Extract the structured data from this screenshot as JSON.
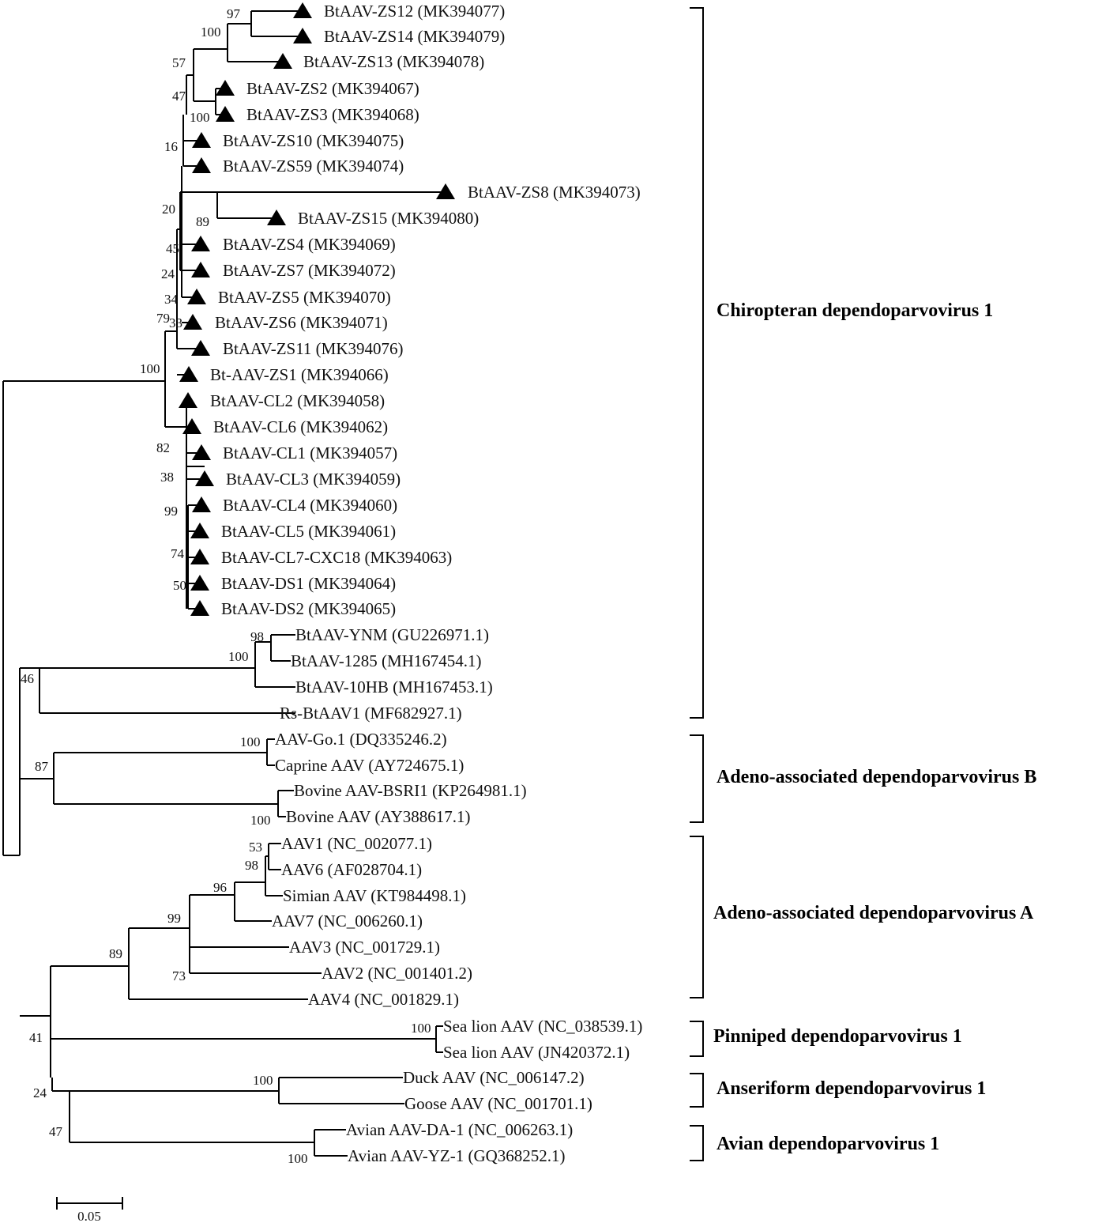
{
  "leaves": [
    {
      "label": "BtAAV-ZS12 (MK394077)",
      "marked": true
    },
    {
      "label": "BtAAV-ZS14 (MK394079)",
      "marked": true
    },
    {
      "label": "BtAAV-ZS13 (MK394078)",
      "marked": true
    },
    {
      "label": "BtAAV-ZS2 (MK394067)",
      "marked": true
    },
    {
      "label": "BtAAV-ZS3 (MK394068)",
      "marked": true
    },
    {
      "label": "BtAAV-ZS10 (MK394075)",
      "marked": true
    },
    {
      "label": "BtAAV-ZS59 (MK394074)",
      "marked": true
    },
    {
      "label": "BtAAV-ZS8 (MK394073)",
      "marked": true
    },
    {
      "label": "BtAAV-ZS15 (MK394080)",
      "marked": true
    },
    {
      "label": "BtAAV-ZS4 (MK394069)",
      "marked": true
    },
    {
      "label": "BtAAV-ZS7 (MK394072)",
      "marked": true
    },
    {
      "label": "BtAAV-ZS5 (MK394070)",
      "marked": true
    },
    {
      "label": "BtAAV-ZS6 (MK394071)",
      "marked": true
    },
    {
      "label": "BtAAV-ZS11 (MK394076)",
      "marked": true
    },
    {
      "label": "Bt-AAV-ZS1 (MK394066)",
      "marked": true
    },
    {
      "label": "BtAAV-CL2 (MK394058)",
      "marked": true
    },
    {
      "label": "BtAAV-CL6 (MK394062)",
      "marked": true
    },
    {
      "label": "BtAAV-CL1 (MK394057)",
      "marked": true
    },
    {
      "label": "BtAAV-CL3 (MK394059)",
      "marked": true
    },
    {
      "label": "BtAAV-CL4 (MK394060)",
      "marked": true
    },
    {
      "label": "BtAAV-CL5 (MK394061)",
      "marked": true
    },
    {
      "label": "BtAAV-CL7-CXC18 (MK394063)",
      "marked": true
    },
    {
      "label": "BtAAV-DS1 (MK394064)",
      "marked": true
    },
    {
      "label": "BtAAV-DS2 (MK394065)",
      "marked": true
    },
    {
      "label": "BtAAV-YNM (GU226971.1)",
      "marked": false
    },
    {
      "label": "BtAAV-1285 (MH167454.1)",
      "marked": false
    },
    {
      "label": "BtAAV-10HB (MH167453.1)",
      "marked": false
    },
    {
      "label": "Rs-BtAAV1 (MF682927.1)",
      "marked": false
    },
    {
      "label": "AAV-Go.1 (DQ335246.2)",
      "marked": false
    },
    {
      "label": "Caprine AAV (AY724675.1)",
      "marked": false
    },
    {
      "label": "Bovine AAV-BSRI1 (KP264981.1)",
      "marked": false
    },
    {
      "label": "Bovine AAV (AY388617.1)",
      "marked": false
    },
    {
      "label": "AAV1 (NC_002077.1)",
      "marked": false
    },
    {
      "label": "AAV6 (AF028704.1)",
      "marked": false
    },
    {
      "label": "Simian AAV (KT984498.1)",
      "marked": false
    },
    {
      "label": "AAV7 (NC_006260.1)",
      "marked": false
    },
    {
      "label": "AAV3 (NC_001729.1)",
      "marked": false
    },
    {
      "label": "AAV2 (NC_001401.2)",
      "marked": false
    },
    {
      "label": "AAV4 (NC_001829.1)",
      "marked": false
    },
    {
      "label": "Sea lion AAV (NC_038539.1)",
      "marked": false
    },
    {
      "label": "Sea lion AAV (JN420372.1)",
      "marked": false
    },
    {
      "label": "Duck AAV (NC_006147.2)",
      "marked": false
    },
    {
      "label": "Goose AAV (NC_001701.1)",
      "marked": false
    },
    {
      "label": "Avian AAV-DA-1 (NC_006263.1)",
      "marked": false
    },
    {
      "label": "Avian AAV-YZ-1 (GQ368252.1)",
      "marked": false
    }
  ],
  "bootstrap": [
    "97",
    "100",
    "57",
    "47",
    "100",
    "16",
    "20",
    "89",
    "45",
    "24",
    "34",
    "33",
    "79",
    "100",
    "82",
    "38",
    "99",
    "74",
    "50",
    "98",
    "100",
    "46",
    "100",
    "87",
    "100",
    "53",
    "98",
    "96",
    "99",
    "89",
    "73",
    "100",
    "41",
    "100",
    "24",
    "47",
    "100"
  ],
  "groups": [
    "Chiropteran dependoparvovirus 1",
    "Adeno-associated dependoparvovirus B",
    "Adeno-associated dependoparvovirus A",
    "Pinniped dependoparvovirus 1",
    "Anseriform dependoparvovirus 1",
    "Avian dependoparvovirus 1"
  ],
  "scale_bar": {
    "label": "0.05"
  }
}
